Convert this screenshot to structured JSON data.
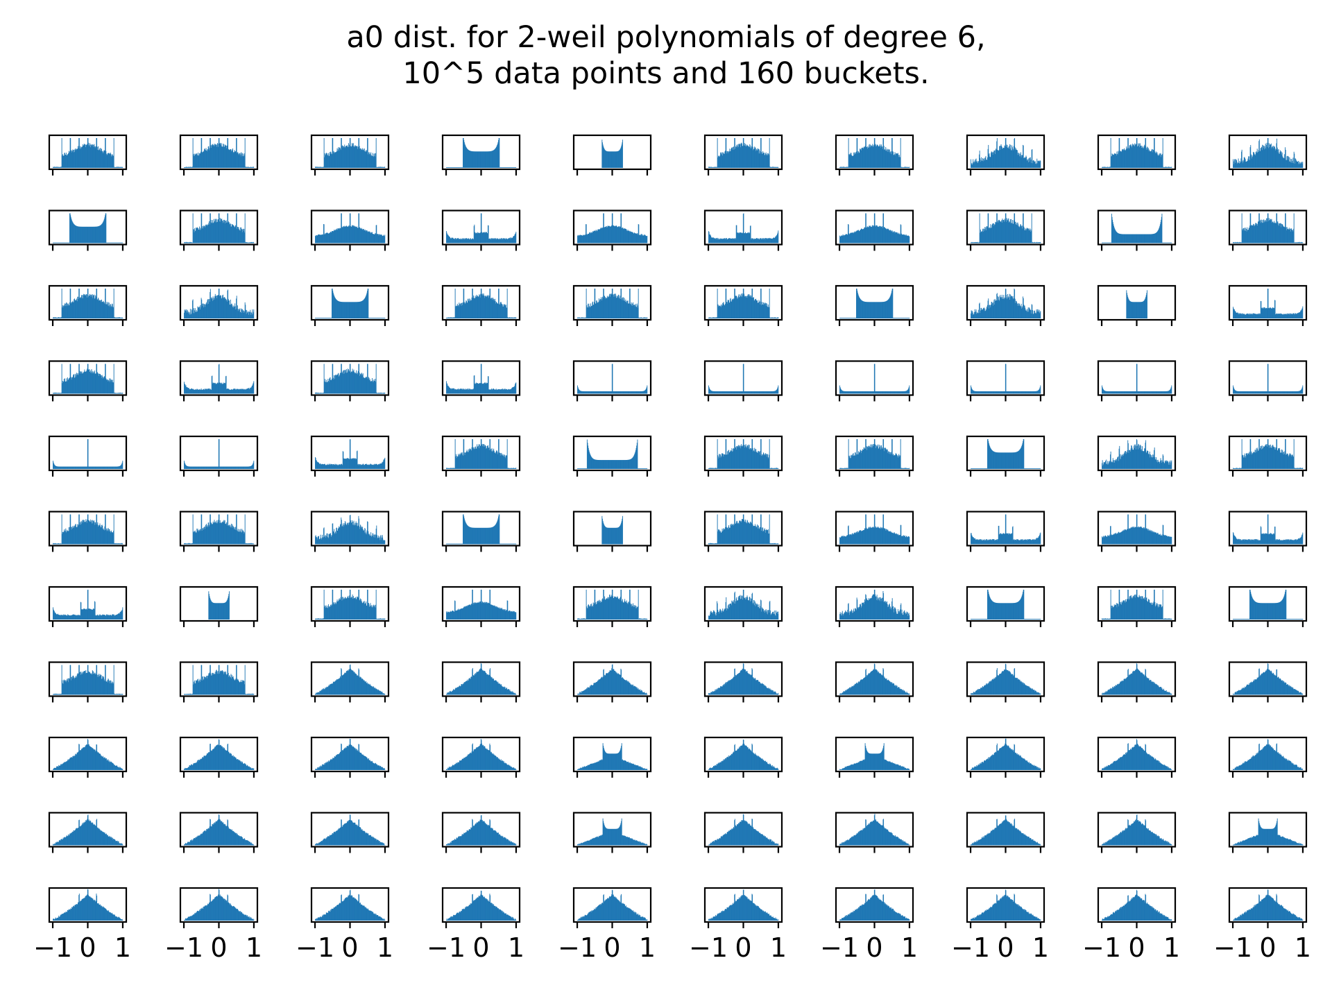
{
  "title_line1": "a0 dist. for 2-weil polynomials of degree 6,",
  "title_line2": "10^5 data points and 160 buckets.",
  "chart_data": {
    "type": "bar",
    "title": "a0 dist. for 2-weil polynomials of degree 6, 10^5 data points and 160 buckets.",
    "xlabel": "",
    "ylabel": "",
    "rows": 11,
    "cols": 10,
    "xlim": [
      -1.1,
      1.1
    ],
    "xticks": [
      -1,
      0,
      1
    ],
    "xtick_labels": [
      "−1",
      "0",
      "1"
    ],
    "xtick_labels_shown_on": "bottom row only",
    "bar_color": "#1f77b4",
    "bins": 160,
    "panel_shapes": [
      [
        "spiky",
        "spiky",
        "spiky",
        "arch",
        "arch-narrow",
        "spiky",
        "spiky",
        "spiky-hump",
        "spiky",
        "spiky-hump"
      ],
      [
        "arch",
        "spiky",
        "spiky-wide",
        "flat-wide",
        "spiky-wide",
        "flat-wide",
        "spiky-wide",
        "spiky",
        "arch-wide",
        "spiky"
      ],
      [
        "spiky",
        "spiky-hump",
        "arch",
        "spiky",
        "spiky",
        "spiky",
        "arch",
        "spiky-hump",
        "arch-narrow",
        "flat-wide"
      ],
      [
        "spiky",
        "flat-wide",
        "spiky",
        "flat-wide",
        "u-wide",
        "u-wide",
        "u-wide",
        "u-wide",
        "u-wide",
        "u-wide"
      ],
      [
        "u-wide",
        "u-wide",
        "flat-wide",
        "spiky",
        "arch-wide",
        "spiky",
        "spiky",
        "arch",
        "spiky-hump",
        "spiky"
      ],
      [
        "spiky",
        "spiky",
        "spiky-hump",
        "arch",
        "arch-narrow",
        "spiky",
        "spiky-wide",
        "flat-wide",
        "spiky-wide",
        "flat-wide"
      ],
      [
        "flat-wide",
        "arch-narrow",
        "spiky",
        "spiky-wide",
        "spiky",
        "spiky-hump",
        "spiky-hump",
        "arch",
        "spiky",
        "arch"
      ],
      [
        "spiky",
        "spiky",
        "tent",
        "tent",
        "tent",
        "tent",
        "tent",
        "tent",
        "tent",
        "tent"
      ],
      [
        "tent",
        "tent",
        "tent",
        "tent",
        "arch-tent",
        "tent",
        "arch-tent",
        "tent",
        "tent",
        "tent"
      ],
      [
        "tent",
        "tent",
        "tent",
        "tent",
        "arch-tent",
        "tent",
        "tent",
        "tent",
        "tent",
        "arch-tent"
      ],
      [
        "tent",
        "tent",
        "tent",
        "tent",
        "tent",
        "tent",
        "tent",
        "tent",
        "tent",
        "tent"
      ]
    ]
  }
}
